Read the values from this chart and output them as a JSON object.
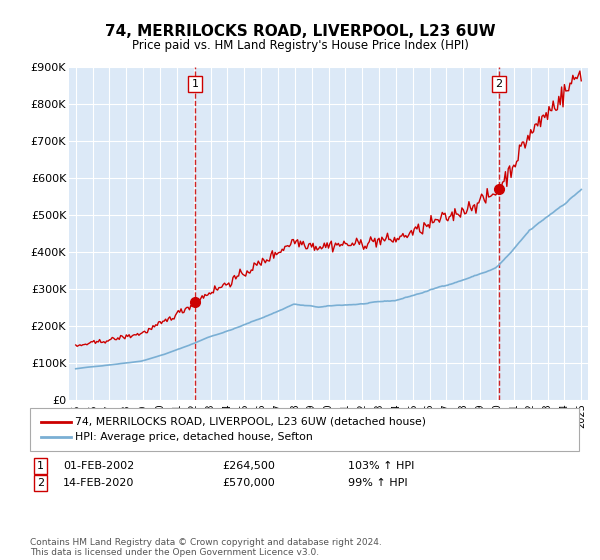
{
  "title": "74, MERRILOCKS ROAD, LIVERPOOL, L23 6UW",
  "subtitle": "Price paid vs. HM Land Registry's House Price Index (HPI)",
  "ylim": [
    0,
    900000
  ],
  "yticks": [
    0,
    100000,
    200000,
    300000,
    400000,
    500000,
    600000,
    700000,
    800000,
    900000
  ],
  "ytick_labels": [
    "£0",
    "£100K",
    "£200K",
    "£300K",
    "£400K",
    "£500K",
    "£600K",
    "£700K",
    "£800K",
    "£900K"
  ],
  "x_start_year": 1995,
  "x_end_year": 2025,
  "plot_bg_color": "#dce9f7",
  "red_line_color": "#cc0000",
  "blue_line_color": "#7aafd4",
  "sale1_year": 2002.08,
  "sale1_price": 264500,
  "sale1_label": "1",
  "sale2_year": 2020.12,
  "sale2_price": 570000,
  "sale2_label": "2",
  "legend_line1": "74, MERRILOCKS ROAD, LIVERPOOL, L23 6UW (detached house)",
  "legend_line2": "HPI: Average price, detached house, Sefton",
  "annotation1_date": "01-FEB-2002",
  "annotation1_price": "£264,500",
  "annotation1_hpi": "103% ↑ HPI",
  "annotation2_date": "14-FEB-2020",
  "annotation2_price": "£570,000",
  "annotation2_hpi": "99% ↑ HPI",
  "footer": "Contains HM Land Registry data © Crown copyright and database right 2024.\nThis data is licensed under the Open Government Licence v3.0."
}
